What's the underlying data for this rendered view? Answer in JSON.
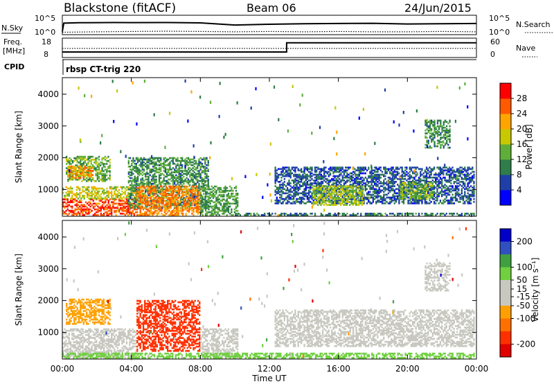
{
  "header": {
    "station": "Blackstone (fitACF)",
    "beam": "Beam 06",
    "date": "24/Jun/2015"
  },
  "noise_panel": {
    "left_label": "N.Sky",
    "left_ticks": [
      "10^5",
      "10^0"
    ],
    "right_ticks": [
      "10^5",
      "10^0"
    ],
    "right_label": "N.Search"
  },
  "freq_panel": {
    "left_label_1": "Freq.",
    "left_label_2": "[MHz]",
    "left_ticks": [
      "18",
      "8"
    ],
    "right_ticks": [
      "60",
      "0"
    ],
    "right_label": "Nave"
  },
  "cpid_panel": {
    "label": "CPID",
    "program": "rbsp CT-trig 220"
  },
  "colors": {
    "power_scale": [
      "#0000ff",
      "#1f3fa8",
      "#2e7d4a",
      "#5fae3a",
      "#c8c800",
      "#ffa500",
      "#ff5a00",
      "#ff0000"
    ],
    "velocity_scale": [
      "#0000c8",
      "#3050c0",
      "#40a040",
      "#70d040",
      "#c8c8c0",
      "#c8c8c0",
      "#ffa000",
      "#ff7000",
      "#ff3000",
      "#e00000"
    ],
    "ground_scatter": "#c8c8c0"
  },
  "chart_data": [
    {
      "type": "line",
      "title": "",
      "series": [
        {
          "name": "N.Sky",
          "style": "solid",
          "x": [
            "00:00",
            "00:05",
            "01:00",
            "03:00",
            "04:00",
            "06:00",
            "08:00",
            "10:00",
            "12:00",
            "14:00",
            "16:00",
            "18:00",
            "20:00",
            "22:00",
            "24:00"
          ],
          "values": [
            5,
            1000,
            1300,
            1500,
            1400,
            1500,
            1200,
            300,
            500,
            700,
            800,
            900,
            600,
            700,
            800
          ]
        },
        {
          "name": "N.Search",
          "style": "dotted",
          "x": [
            "00:00",
            "02:00",
            "04:00",
            "06:00",
            "08:00",
            "10:00",
            "12:00",
            "14:00",
            "16:00",
            "18:00",
            "20:00",
            "22:00",
            "24:00"
          ],
          "values": [
            3,
            4,
            5,
            6,
            5,
            4,
            5,
            4,
            5,
            4,
            4,
            5,
            4
          ]
        }
      ],
      "ylim_left": [
        "10^0",
        "10^5"
      ],
      "ylim_right": [
        "10^0",
        "10^5"
      ],
      "yscale": "log"
    },
    {
      "type": "line",
      "series": [
        {
          "name": "Freq.",
          "style": "solid",
          "x": [
            "00:00",
            "13:00",
            "13:00",
            "24:00"
          ],
          "values": [
            10.5,
            10.5,
            16,
            16
          ],
          "axis": "left"
        },
        {
          "name": "Nave",
          "style": "dotted",
          "x": [
            "00:00",
            "24:00"
          ],
          "values": [
            28,
            28
          ],
          "axis": "right"
        }
      ],
      "ylim_left": [
        8,
        18
      ],
      "ylim_right": [
        0,
        60
      ]
    },
    {
      "type": "heatmap",
      "quantity": "Power",
      "ylabel": "Slant Range [km]",
      "xlabel": "",
      "xlim": [
        "00:00",
        "24:00"
      ],
      "ylim": [
        180,
        4500
      ],
      "yticks": [
        1000,
        2000,
        3000,
        4000
      ],
      "colorbar": {
        "label": "Power [dB]",
        "ticks": [
          4,
          8,
          12,
          16,
          20,
          24,
          28
        ],
        "range": [
          0,
          32
        ]
      },
      "regions": [
        {
          "t": [
            0.0,
            4.3
          ],
          "r": [
            180,
            700
          ],
          "value": 27
        },
        {
          "t": [
            0.0,
            4.3
          ],
          "r": [
            700,
            1100
          ],
          "value": 18
        },
        {
          "t": [
            0.2,
            2.8
          ],
          "r": [
            1250,
            2050
          ],
          "value": 14
        },
        {
          "t": [
            0.3,
            1.8
          ],
          "r": [
            1350,
            1750
          ],
          "value": 22
        },
        {
          "t": [
            3.8,
            8.5
          ],
          "r": [
            400,
            2000
          ],
          "value": 11
        },
        {
          "t": [
            4.3,
            8.0
          ],
          "r": [
            180,
            1100
          ],
          "value": 24
        },
        {
          "t": [
            8.0,
            10.2
          ],
          "r": [
            180,
            1100
          ],
          "value": 12
        },
        {
          "t": [
            12.3,
            23.9
          ],
          "r": [
            550,
            1700
          ],
          "value": 7
        },
        {
          "t": [
            14.5,
            17.5
          ],
          "r": [
            500,
            1100
          ],
          "value": 16
        },
        {
          "t": [
            19.5,
            21.5
          ],
          "r": [
            700,
            1200
          ],
          "value": 14
        },
        {
          "t": [
            21.0,
            22.5
          ],
          "r": [
            2300,
            3200
          ],
          "value": 11
        },
        {
          "t": [
            10.0,
            23.9
          ],
          "r": [
            180,
            260
          ],
          "value": 9
        }
      ]
    },
    {
      "type": "heatmap",
      "quantity": "Velocity",
      "ylabel": "Slant Range [km]",
      "xlabel": "Time UT",
      "xlim": [
        "00:00",
        "24:00"
      ],
      "xticks": [
        "00:00",
        "04:00",
        "08:00",
        "12:00",
        "16:00",
        "20:00",
        "00:00"
      ],
      "ylim": [
        180,
        4500
      ],
      "yticks": [
        1000,
        2000,
        3000,
        4000
      ],
      "colorbar": {
        "label": "Velocity [m s⁻¹]",
        "ticks": [
          200,
          100,
          50,
          15,
          -15,
          -50,
          -100,
          -200
        ],
        "range": [
          -250,
          250
        ]
      },
      "regions": [
        {
          "t": [
            0.0,
            4.3
          ],
          "r": [
            180,
            1100
          ],
          "value": "ground"
        },
        {
          "t": [
            0.2,
            2.8
          ],
          "r": [
            1250,
            2050
          ],
          "value": -60
        },
        {
          "t": [
            4.3,
            8.0
          ],
          "r": [
            400,
            2000
          ],
          "value": -170
        },
        {
          "t": [
            8.0,
            10.2
          ],
          "r": [
            180,
            1100
          ],
          "value": "ground"
        },
        {
          "t": [
            12.3,
            23.9
          ],
          "r": [
            550,
            1700
          ],
          "value": "ground"
        },
        {
          "t": [
            21.0,
            22.5
          ],
          "r": [
            2300,
            3200
          ],
          "value": "ground"
        },
        {
          "t": [
            0.0,
            23.9
          ],
          "r": [
            180,
            330
          ],
          "value": 60
        }
      ]
    }
  ]
}
